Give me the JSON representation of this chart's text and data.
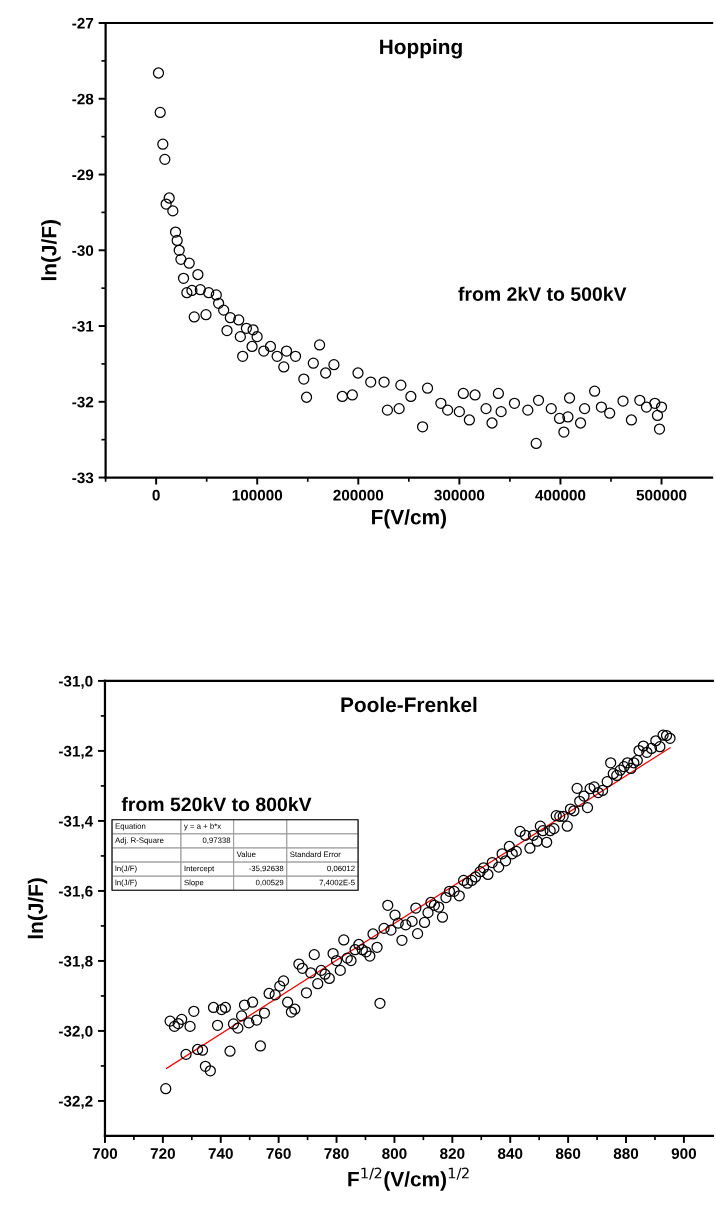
{
  "chart_data": [
    {
      "type": "scatter",
      "title": "Hopping",
      "xlabel": "F(V/cm)",
      "ylabel": "ln(J/F)",
      "marker": "circle",
      "grid": false,
      "legend": false,
      "annotations": [
        "from 2kV to 500kV"
      ],
      "xlim": [
        -50000,
        550000
      ],
      "ylim": [
        -33,
        -27
      ],
      "xticks": [
        {
          "value": -50000,
          "label": null
        },
        0,
        {
          "value": 50000,
          "label": null
        },
        100000,
        {
          "value": 150000,
          "label": null
        },
        200000,
        {
          "value": 250000,
          "label": null
        },
        300000,
        {
          "value": 350000,
          "label": null
        },
        400000,
        {
          "value": 450000,
          "label": null
        },
        500000
      ],
      "yticks": [
        -33,
        {
          "value": -32.5,
          "label": null
        },
        -32,
        {
          "value": -31.5,
          "label": null
        },
        -31,
        {
          "value": -30.5,
          "label": null
        },
        -30,
        {
          "value": -29.5,
          "label": null
        },
        -29,
        {
          "value": -28.5,
          "label": null
        },
        -28,
        {
          "value": -27.5,
          "label": null
        },
        -27
      ],
      "series": [
        {
          "color": "#000000",
          "x": [
            2300,
            4000,
            6600,
            8600,
            9900,
            12900,
            16500,
            19200,
            20800,
            22800,
            24500,
            27100,
            30400,
            32700,
            35400,
            37700,
            41300,
            43700,
            49300,
            52000,
            59500,
            61800,
            66800,
            70100,
            73400,
            81700,
            83300,
            85600,
            89300,
            94900,
            95900,
            99900,
            106500,
            113100,
            119700,
            126300,
            129000,
            137900,
            146100,
            148800,
            155500,
            161700,
            167700,
            175900,
            184200,
            194100,
            199700,
            212300,
            225500,
            228800,
            240400,
            242100,
            252000,
            263600,
            268500,
            281700,
            288400,
            300000,
            303900,
            309900,
            315500,
            326400,
            332300,
            338600,
            341300,
            354500,
            367700,
            376000,
            378300,
            390900,
            399100,
            403400,
            407400,
            409000,
            419900,
            423900,
            433800,
            440500,
            448700,
            461900,
            470200,
            478500,
            485100,
            493400,
            496000,
            498000,
            500000
          ],
          "values": [
            -27.66,
            -28.18,
            -28.6,
            -28.8,
            -29.39,
            -29.31,
            -29.48,
            -29.76,
            -29.87,
            -30.0,
            -30.12,
            -30.37,
            -30.56,
            -30.17,
            -30.53,
            -30.88,
            -30.32,
            -30.52,
            -30.85,
            -30.56,
            -30.59,
            -30.7,
            -30.79,
            -31.06,
            -30.89,
            -30.92,
            -31.14,
            -31.4,
            -31.03,
            -31.27,
            -31.05,
            -31.14,
            -31.33,
            -31.27,
            -31.4,
            -31.54,
            -31.33,
            -31.4,
            -31.7,
            -31.94,
            -31.49,
            -31.25,
            -31.62,
            -31.51,
            -31.93,
            -31.91,
            -31.62,
            -31.74,
            -31.74,
            -32.11,
            -32.09,
            -31.78,
            -31.93,
            -32.33,
            -31.82,
            -32.02,
            -32.11,
            -32.13,
            -31.89,
            -32.24,
            -31.91,
            -32.09,
            -32.28,
            -31.89,
            -32.13,
            -32.02,
            -32.11,
            -32.55,
            -31.98,
            -32.09,
            -32.22,
            -32.4,
            -32.2,
            -31.95,
            -32.28,
            -32.09,
            -31.86,
            -32.07,
            -32.15,
            -31.99,
            -32.24,
            -31.98,
            -32.07,
            -32.02,
            -32.18,
            -32.36,
            -32.07
          ]
        }
      ]
    },
    {
      "type": "scatter",
      "title": "Poole-Frenkel",
      "xlabel": "F$^{1/2}$(V/cm)$^{1/2}$",
      "ylabel": "ln(J/F)",
      "marker": "circle",
      "grid": false,
      "legend": false,
      "annotations": [
        "from 520kV to 800kV",
        "Equation",
        "y = a + b*x",
        "Adj. R-Square",
        "0,97338",
        "Value",
        "Standard Error",
        "ln(J/F)",
        "Intercept",
        "-35,92638",
        "0,06012",
        "ln(J/F)",
        "Slope",
        "0,00529",
        "7,4002E-5"
      ],
      "xlim": [
        700,
        910
      ],
      "ylim": [
        -32.3,
        -31.0
      ],
      "xticks": [
        700,
        {
          "value": 710,
          "label": null
        },
        720,
        {
          "value": 730,
          "label": null
        },
        740,
        {
          "value": 750,
          "label": null
        },
        760,
        {
          "value": 770,
          "label": null
        },
        780,
        {
          "value": 790,
          "label": null
        },
        800,
        {
          "value": 810,
          "label": null
        },
        820,
        {
          "value": 830,
          "label": null
        },
        840,
        {
          "value": 850,
          "label": null
        },
        860,
        {
          "value": 870,
          "label": null
        },
        880,
        {
          "value": 890,
          "label": null
        },
        900
      ],
      "yticks": [
        {
          "value": -32.2,
          "label": "-32,2"
        },
        {
          "value": -32.1,
          "label": null
        },
        {
          "value": -32.0,
          "label": "-32,0"
        },
        {
          "value": -31.9,
          "label": null
        },
        {
          "value": -31.8,
          "label": "-31,8"
        },
        {
          "value": -31.7,
          "label": null
        },
        {
          "value": -31.6,
          "label": "-31,6"
        },
        {
          "value": -31.5,
          "label": null
        },
        {
          "value": -31.4,
          "label": "-31,4"
        },
        {
          "value": -31.3,
          "label": null
        },
        {
          "value": -31.2,
          "label": "-31,2"
        },
        {
          "value": -31.1,
          "label": null
        },
        {
          "value": -31.0,
          "label": "-31,0"
        }
      ],
      "series": [
        {
          "color": "#000000",
          "x": [
            721.0,
            722.5,
            724.0,
            725.3,
            726.5,
            728.0,
            729.4,
            730.7,
            732.0,
            733.7,
            734.7,
            736.4,
            737.5,
            738.9,
            740.3,
            741.6,
            743.2,
            744.4,
            745.9,
            747.2,
            748.2,
            749.7,
            751.0,
            752.4,
            753.7,
            755.1,
            756.7,
            758.8,
            760.4,
            761.7,
            763.1,
            764.4,
            765.6,
            767.0,
            768.2,
            769.6,
            771.1,
            772.3,
            773.5,
            774.7,
            776.0,
            777.5,
            778.8,
            780.0,
            781.3,
            782.5,
            783.7,
            785.0,
            786.4,
            787.7,
            788.9,
            790.2,
            791.5,
            792.6,
            794.0,
            795.0,
            796.4,
            797.7,
            798.8,
            800.2,
            801.3,
            802.6,
            803.9,
            806.1,
            807.4,
            808.0,
            810.4,
            811.6,
            812.6,
            813.8,
            815.3,
            816.6,
            817.8,
            819.0,
            820.6,
            822.4,
            823.9,
            825.2,
            826.7,
            828.0,
            829.6,
            830.8,
            832.3,
            833.8,
            836.0,
            837.2,
            838.4,
            839.7,
            840.7,
            842.1,
            843.4,
            845.2,
            846.8,
            848.0,
            849.3,
            850.4,
            851.3,
            852.6,
            853.8,
            855.1,
            855.9,
            857.1,
            858.3,
            859.7,
            860.8,
            862.0,
            863.1,
            864.0,
            865.5,
            866.7,
            867.6,
            869.0,
            870.4,
            871.9,
            873.5,
            874.7,
            875.6,
            876.8,
            878.0,
            879.3,
            880.5,
            881.7,
            882.7,
            883.9,
            884.5,
            886.0,
            887.2,
            888.8,
            890.3,
            891.7,
            892.8,
            894.0,
            895.2
          ],
          "values": [
            -32.165,
            -31.972,
            -31.987,
            -31.979,
            -31.967,
            -32.067,
            -31.987,
            -31.944,
            -32.053,
            -32.055,
            -32.101,
            -32.114,
            -31.933,
            -31.984,
            -31.939,
            -31.933,
            -32.058,
            -31.98,
            -31.992,
            -31.957,
            -31.926,
            -31.977,
            -31.918,
            -31.969,
            -32.043,
            -31.949,
            -31.893,
            -31.897,
            -31.872,
            -31.857,
            -31.918,
            -31.946,
            -31.938,
            -31.809,
            -31.821,
            -31.891,
            -31.834,
            -31.782,
            -31.865,
            -31.827,
            -31.838,
            -31.85,
            -31.779,
            -31.799,
            -31.827,
            -31.74,
            -31.792,
            -31.799,
            -31.768,
            -31.753,
            -31.768,
            -31.774,
            -31.786,
            -31.723,
            -31.761,
            -31.921,
            -31.707,
            -31.641,
            -31.712,
            -31.669,
            -31.692,
            -31.741,
            -31.697,
            -31.687,
            -31.649,
            -31.722,
            -31.69,
            -31.662,
            -31.633,
            -31.641,
            -31.646,
            -31.675,
            -31.619,
            -31.601,
            -31.601,
            -31.614,
            -31.57,
            -31.578,
            -31.57,
            -31.56,
            -31.545,
            -31.534,
            -31.553,
            -31.519,
            -31.532,
            -31.494,
            -31.514,
            -31.473,
            -31.494,
            -31.487,
            -31.43,
            -31.441,
            -31.478,
            -31.441,
            -31.458,
            -31.415,
            -31.428,
            -31.461,
            -31.428,
            -31.422,
            -31.385,
            -31.387,
            -31.387,
            -31.415,
            -31.366,
            -31.371,
            -31.307,
            -31.344,
            -31.329,
            -31.362,
            -31.308,
            -31.303,
            -31.319,
            -31.313,
            -31.288,
            -31.234,
            -31.265,
            -31.27,
            -31.255,
            -31.245,
            -31.234,
            -31.25,
            -31.234,
            -31.227,
            -31.199,
            -31.186,
            -31.204,
            -31.193,
            -31.171,
            -31.188,
            -31.155,
            -31.156,
            -31.164
          ]
        },
        {
          "type": "line",
          "marker": "none",
          "color": "#ff0000",
          "x": [
            721.3,
            895.2
          ],
          "values": [
            -32.107,
            -31.191
          ]
        }
      ]
    }
  ]
}
